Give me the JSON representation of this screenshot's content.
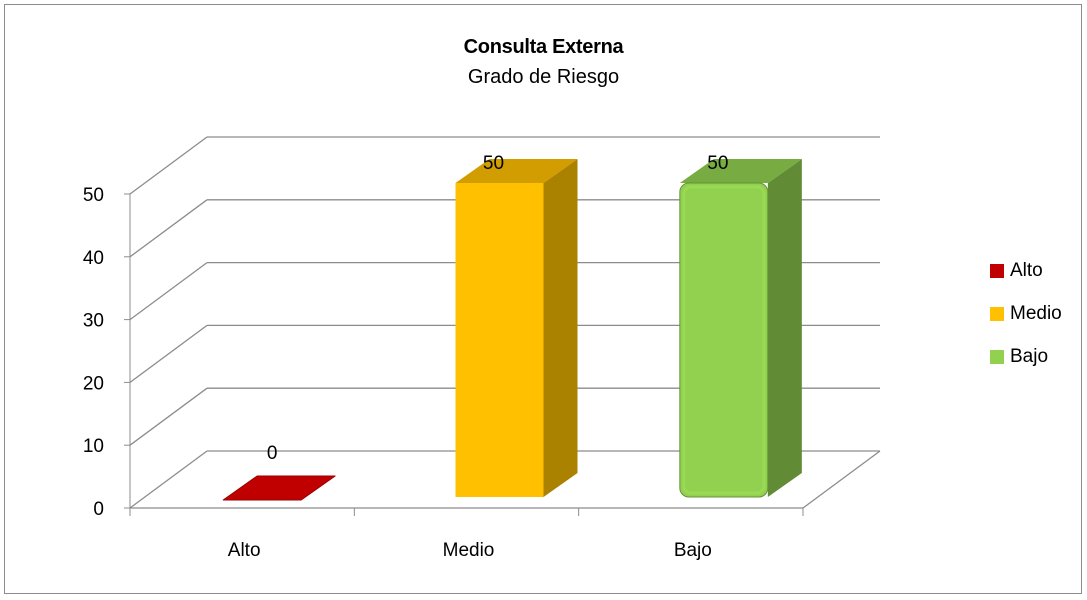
{
  "chart_data": {
    "type": "bar",
    "title": "Consulta Externa",
    "subtitle": "Grado de Riesgo",
    "categories": [
      "Alto",
      "Medio",
      "Bajo"
    ],
    "series": [
      {
        "name": "Alto",
        "values": [
          0,
          null,
          null
        ]
      },
      {
        "name": "Medio",
        "values": [
          null,
          50,
          null
        ]
      },
      {
        "name": "Bajo",
        "values": [
          null,
          null,
          50
        ]
      }
    ],
    "values": [
      0,
      50,
      50
    ],
    "data_labels": [
      "0",
      "50",
      "50"
    ],
    "ylim": [
      0,
      50
    ],
    "yticks": [
      "0",
      "10",
      "20",
      "30",
      "40",
      "50"
    ],
    "grid": true,
    "legend_position": "right",
    "style": "3d-column",
    "colors": {
      "Alto": "#c00000",
      "Medio": "#ffc000",
      "Bajo": "#92d050"
    }
  },
  "legend": [
    {
      "label": "Alto",
      "color": "#c00000"
    },
    {
      "label": "Medio",
      "color": "#ffc000"
    },
    {
      "label": "Bajo",
      "color": "#92d050"
    }
  ]
}
